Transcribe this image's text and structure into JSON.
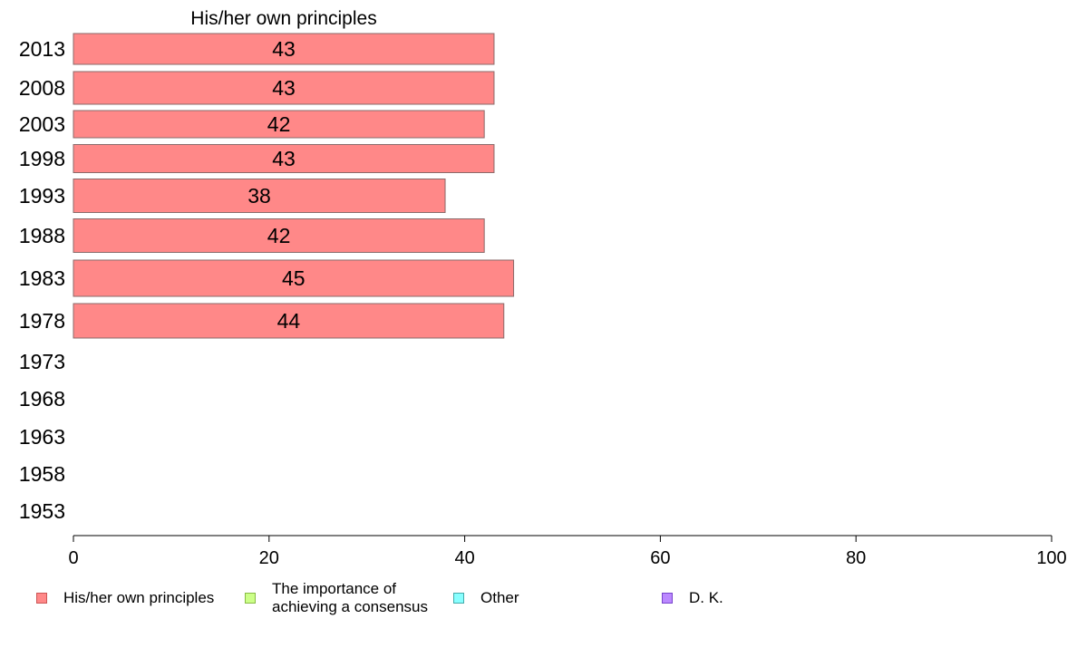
{
  "chart_data": {
    "type": "bar",
    "orientation": "horizontal",
    "title": "His/her own principles",
    "categories": [
      "2013",
      "2008",
      "2003",
      "1998",
      "1993",
      "1988",
      "1983",
      "1978",
      "1973",
      "1968",
      "1963",
      "1958",
      "1953"
    ],
    "series": [
      {
        "name": "His/her own principles",
        "color": "#ff8888",
        "values": [
          43,
          43,
          42,
          43,
          38,
          42,
          45,
          44,
          null,
          null,
          null,
          null,
          null
        ],
        "value_labels": [
          "43",
          "43",
          "42",
          "43",
          "38",
          "42",
          "45",
          "44",
          "",
          "",
          "",
          "",
          ""
        ]
      }
    ],
    "xlim": [
      0,
      100
    ],
    "xticks": [
      "0",
      "20",
      "40",
      "60",
      "80",
      "100"
    ],
    "grid": false,
    "legend_position": "bottom"
  },
  "legend": [
    {
      "label": "His/her own principles",
      "color": "#ff8888",
      "border": "#cc5555"
    },
    {
      "label": "The importance of\nachieving a consensus",
      "color": "#ccff88",
      "border": "#88bb44"
    },
    {
      "label": "Other",
      "color": "#88ffff",
      "border": "#44aaaa"
    },
    {
      "label": "D. K.",
      "color": "#bb88ff",
      "border": "#7744cc"
    }
  ]
}
